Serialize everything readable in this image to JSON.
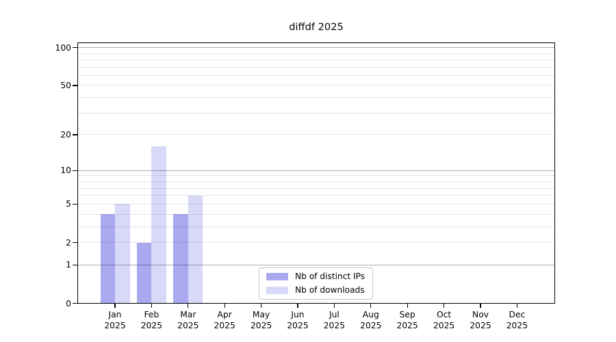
{
  "title": "diffdf 2025",
  "chart_data": {
    "type": "bar",
    "title": "diffdf 2025",
    "categories": [
      "Jan",
      "Feb",
      "Mar",
      "Apr",
      "May",
      "Jun",
      "Jul",
      "Aug",
      "Sep",
      "Oct",
      "Nov",
      "Dec"
    ],
    "year": "2025",
    "series": [
      {
        "name": "Nb of distinct IPs",
        "color": "#a9a9f0",
        "values": [
          4,
          2,
          4,
          0,
          0,
          0,
          0,
          0,
          0,
          0,
          0,
          0
        ]
      },
      {
        "name": "Nb of downloads",
        "color": "#d8d8f8",
        "values": [
          5,
          16,
          6,
          0,
          0,
          0,
          0,
          0,
          0,
          0,
          0,
          0
        ]
      }
    ],
    "xlabel": "",
    "ylabel": "",
    "yscale": "log1p",
    "ylim": [
      0,
      110
    ],
    "y_ticks": [
      0,
      1,
      2,
      5,
      10,
      20,
      50,
      100
    ],
    "y_major_gridlines": [
      1,
      10,
      100
    ],
    "y_minor_gridlines": [
      2,
      3,
      4,
      5,
      6,
      7,
      8,
      9,
      20,
      30,
      40,
      50,
      60,
      70,
      80,
      90
    ],
    "grid": true,
    "legend_position": "lower center"
  }
}
